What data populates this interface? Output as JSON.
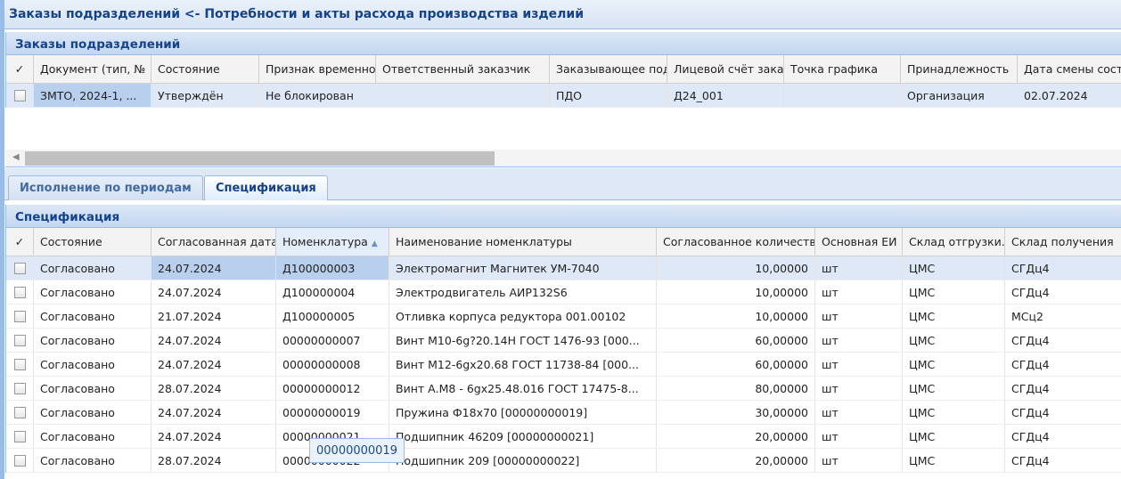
{
  "title": "Заказы подразделений <- Потребности и акты расхода производства изделий",
  "orders": {
    "header": "Заказы подразделений",
    "columns": [
      "Документ (тип, №",
      "Состояние",
      "Признак временно",
      "Ответственный заказчик",
      "Заказывающее под",
      "Лицевой счёт зака",
      "Точка графика",
      "Принадлежность",
      "Дата смены сост"
    ],
    "rows": [
      [
        "ЗМТО, 2024-1, ...",
        "Утверждён",
        "Не блокирован",
        "",
        "ПДО",
        "Д24_001",
        "",
        "Организация",
        "02.07.2024"
      ]
    ]
  },
  "tabs": [
    {
      "label": "Исполнение по периодам"
    },
    {
      "label": "Спецификация",
      "active": true
    }
  ],
  "spec": {
    "header": "Спецификация",
    "sort_column": "Номенклатура",
    "sort_dir": "asc",
    "columns": [
      "Состояние",
      "Согласованная дата",
      "Номенклатура",
      "Наименование номенклатуры",
      "Согласованное количеств",
      "Основная ЕИ",
      "Склад отгрузки.",
      "Склад получения"
    ],
    "rows": [
      [
        "Согласовано",
        "24.07.2024",
        "Д100000003",
        "Электромагнит Магнитек УМ-7040",
        "10,00000",
        "шт",
        "ЦМС",
        "СГДц4"
      ],
      [
        "Согласовано",
        "24.07.2024",
        "Д100000004",
        "Электродвигатель АИР132S6",
        "10,00000",
        "шт",
        "ЦМС",
        "СГДц4"
      ],
      [
        "Согласовано",
        "21.07.2024",
        "Д100000005",
        "Отливка корпуса редуктора 001.00102",
        "10,00000",
        "шт",
        "ЦМС",
        "МСц2"
      ],
      [
        "Согласовано",
        "24.07.2024",
        "00000000007",
        "Винт М10-6g?20.14Н ГОСТ 1476-93 [000...",
        "60,00000",
        "шт",
        "ЦМС",
        "СГДц4"
      ],
      [
        "Согласовано",
        "24.07.2024",
        "00000000008",
        "Винт М12-6gх20.68 ГОСТ 11738-84 [000...",
        "60,00000",
        "шт",
        "ЦМС",
        "СГДц4"
      ],
      [
        "Согласовано",
        "28.07.2024",
        "00000000012",
        "Винт А.М8 - 6gх25.48.016 ГОСТ 17475-8...",
        "80,00000",
        "шт",
        "ЦМС",
        "СГДц4"
      ],
      [
        "Согласовано",
        "24.07.2024",
        "00000000019",
        "Пружина Ф18х70 [00000000019]",
        "30,00000",
        "шт",
        "ЦМС",
        "СГДц4"
      ],
      [
        "Согласовано",
        "24.07.2024",
        "00000000021",
        "Подшипник 46209 [00000000021]",
        "20,00000",
        "шт",
        "ЦМС",
        "СГДц4"
      ],
      [
        "Согласовано",
        "28.07.2024",
        "00000000022",
        "Подшипник 209 [00000000022]",
        "20,00000",
        "шт",
        "ЦМС",
        "СГДц4"
      ]
    ]
  },
  "tooltip": "00000000019"
}
